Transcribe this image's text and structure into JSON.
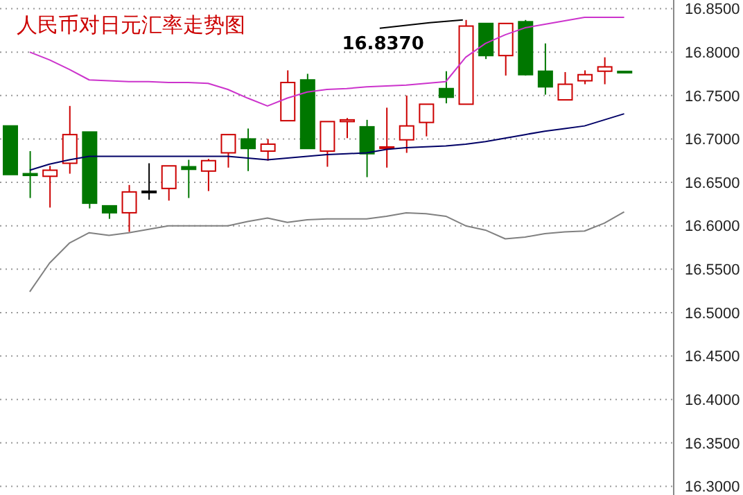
{
  "chart_data": {
    "type": "candlestick",
    "title": "人民币对日元汇率走势图",
    "categories": [
      null,
      null,
      null,
      null,
      null,
      null,
      null,
      null,
      null,
      null,
      null,
      null,
      null,
      null,
      null,
      null,
      null,
      null,
      null,
      null,
      null,
      null,
      null,
      null,
      null,
      null,
      null,
      null,
      null,
      null,
      null,
      null
    ],
    "ohlc": [
      [
        16.715,
        16.715,
        16.659,
        16.659
      ],
      [
        16.66,
        16.686,
        16.632,
        16.658
      ],
      [
        16.657,
        16.669,
        16.621,
        16.664
      ],
      [
        16.672,
        16.738,
        16.66,
        16.705
      ],
      [
        16.708,
        16.708,
        16.62,
        16.626
      ],
      [
        16.623,
        16.623,
        16.608,
        16.615
      ],
      [
        16.615,
        16.647,
        16.593,
        16.639
      ],
      [
        16.639,
        16.672,
        16.63,
        16.639
      ],
      [
        16.643,
        16.669,
        16.629,
        16.669
      ],
      [
        16.668,
        16.676,
        16.632,
        16.665
      ],
      [
        16.663,
        16.677,
        16.64,
        16.675
      ],
      [
        16.684,
        16.705,
        16.667,
        16.705
      ],
      [
        16.7,
        16.712,
        16.663,
        16.689
      ],
      [
        16.686,
        16.7,
        16.675,
        16.694
      ],
      [
        16.721,
        16.779,
        16.721,
        16.765
      ],
      [
        16.768,
        16.775,
        16.689,
        16.689
      ],
      [
        16.686,
        16.72,
        16.668,
        16.72
      ],
      [
        16.72,
        16.724,
        16.701,
        16.722
      ],
      [
        16.714,
        16.722,
        16.656,
        16.683
      ],
      [
        16.689,
        16.736,
        16.667,
        16.69
      ],
      [
        16.699,
        16.75,
        16.684,
        16.715
      ],
      [
        16.719,
        16.74,
        16.703,
        16.74
      ],
      [
        16.758,
        16.778,
        16.741,
        16.748
      ],
      [
        16.74,
        16.837,
        16.74,
        16.83
      ],
      [
        16.833,
        16.833,
        16.792,
        16.796
      ],
      [
        16.796,
        16.833,
        16.773,
        16.833
      ],
      [
        16.835,
        16.837,
        16.773,
        16.774
      ],
      [
        16.778,
        16.81,
        16.751,
        16.76
      ],
      [
        16.745,
        16.777,
        16.745,
        16.763
      ],
      [
        16.767,
        16.779,
        16.763,
        16.774
      ],
      [
        16.778,
        16.794,
        16.763,
        16.783
      ],
      [
        16.777,
        16.778,
        16.776,
        16.776
      ]
    ],
    "colors": [
      "#007700",
      "#007700",
      "#cc0000",
      "#cc0000",
      "#007700",
      "#007700",
      "#cc0000",
      "#000000",
      "#cc0000",
      "#007700",
      "#cc0000",
      "#cc0000",
      "#007700",
      "#cc0000",
      "#cc0000",
      "#007700",
      "#cc0000",
      "#cc0000",
      "#007700",
      "#cc0000",
      "#cc0000",
      "#cc0000",
      "#007700",
      "#cc0000",
      "#007700",
      "#cc0000",
      "#007700",
      "#007700",
      "#cc0000",
      "#cc0000",
      "#cc0000",
      "#007700"
    ],
    "series": [
      {
        "type": "line",
        "color": "#cc33cc",
        "values": [
          null,
          16.8,
          16.791,
          16.78,
          16.768,
          16.767,
          16.766,
          16.766,
          16.765,
          16.765,
          16.764,
          16.757,
          16.747,
          16.738,
          16.747,
          16.754,
          16.757,
          16.758,
          16.76,
          16.761,
          16.762,
          16.764,
          16.766,
          16.794,
          16.81,
          16.82,
          16.828,
          16.832,
          16.836,
          16.84,
          16.84,
          16.84
        ]
      },
      {
        "type": "line",
        "color": "#000066",
        "values": [
          null,
          16.664,
          16.671,
          16.676,
          16.68,
          16.68,
          16.68,
          16.68,
          16.68,
          16.68,
          16.68,
          16.68,
          16.678,
          16.676,
          16.678,
          16.68,
          16.682,
          16.683,
          16.684,
          16.688,
          16.69,
          16.691,
          16.692,
          16.694,
          16.697,
          16.701,
          16.705,
          16.709,
          16.712,
          16.715,
          16.722,
          16.729
        ]
      },
      {
        "type": "line",
        "color": "#808080",
        "values": [
          null,
          16.524,
          16.557,
          16.58,
          16.592,
          16.589,
          16.592,
          16.596,
          16.6,
          16.6,
          16.6,
          16.6,
          16.605,
          16.609,
          16.604,
          16.607,
          16.608,
          16.608,
          16.608,
          16.611,
          16.615,
          16.614,
          16.611,
          16.6,
          16.595,
          16.585,
          16.587,
          16.591,
          16.593,
          16.594,
          16.603,
          16.616
        ]
      }
    ],
    "ylim": [
      16.29,
      16.86
    ],
    "yticks": [
      {
        "value": 16.3,
        "label": "16.3000"
      },
      {
        "value": 16.35,
        "label": "16.3500"
      },
      {
        "value": 16.4,
        "label": "16.4000"
      },
      {
        "value": 16.45,
        "label": "16.4500"
      },
      {
        "value": 16.5,
        "label": "16.5000"
      },
      {
        "value": 16.55,
        "label": "16.5500"
      },
      {
        "value": 16.6,
        "label": "16.6000"
      },
      {
        "value": 16.65,
        "label": "16.6500"
      },
      {
        "value": 16.7,
        "label": "16.7000"
      },
      {
        "value": 16.75,
        "label": "16.7500"
      },
      {
        "value": 16.8,
        "label": "16.8000"
      },
      {
        "value": 16.85,
        "label": "16.8500"
      }
    ],
    "grid": "y",
    "annotations": [
      "16.8370"
    ]
  }
}
